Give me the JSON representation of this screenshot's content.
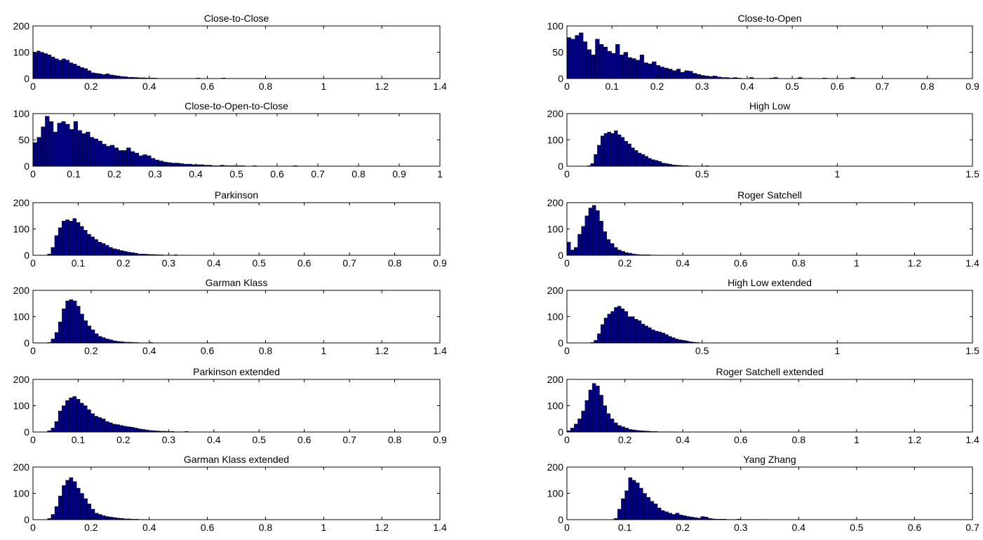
{
  "colors": {
    "bar_fill": "#000080",
    "bar_edge": "#000000",
    "axes": "#000000",
    "background": "#ffffff"
  },
  "chart_data": [
    {
      "type": "bar",
      "title": "Close-to-Close",
      "xlim": [
        0,
        1.4
      ],
      "ylim": [
        0,
        200
      ],
      "xticks": [
        "0",
        "0.2",
        "0.4",
        "0.6",
        "0.8",
        "1",
        "1.2",
        "1.4"
      ],
      "yticks": [
        "0",
        "100",
        "200"
      ],
      "bin_width": 0.0125,
      "series": [
        {
          "values": [
            98,
            105,
            100,
            95,
            90,
            82,
            75,
            70,
            75,
            70,
            60,
            55,
            48,
            42,
            38,
            30,
            22,
            20,
            18,
            15,
            18,
            14,
            12,
            10,
            8,
            7,
            5,
            5,
            4,
            3,
            3,
            2,
            2,
            2,
            1,
            0,
            0,
            0,
            0,
            0,
            0,
            0,
            0,
            0,
            0,
            2,
            0,
            0,
            0,
            0,
            0,
            0,
            2
          ]
        }
      ]
    },
    {
      "type": "bar",
      "title": "Close-to-Open",
      "xlim": [
        0,
        0.9
      ],
      "ylim": [
        0,
        100
      ],
      "xticks": [
        "0",
        "0.1",
        "0.2",
        "0.3",
        "0.4",
        "0.5",
        "0.6",
        "0.7",
        "0.8",
        "0.9"
      ],
      "yticks": [
        "0",
        "50",
        "100"
      ],
      "bin_width": 0.009,
      "series": [
        {
          "values": [
            78,
            75,
            82,
            87,
            70,
            55,
            45,
            75,
            65,
            60,
            52,
            48,
            65,
            45,
            50,
            40,
            38,
            35,
            45,
            30,
            28,
            32,
            25,
            22,
            20,
            18,
            15,
            18,
            12,
            15,
            14,
            10,
            8,
            6,
            5,
            4,
            5,
            3,
            2,
            2,
            1,
            2,
            1,
            0,
            0,
            2,
            0,
            0,
            0,
            0,
            1,
            2,
            0,
            0,
            0,
            0,
            0,
            2,
            0,
            0,
            0,
            0,
            0,
            1,
            0,
            0,
            0,
            0,
            0,
            0,
            2
          ]
        }
      ]
    },
    {
      "type": "bar",
      "title": "Close-to-Open-to-Close",
      "xlim": [
        0,
        1
      ],
      "ylim": [
        0,
        100
      ],
      "xticks": [
        "0",
        "0.1",
        "0.2",
        "0.3",
        "0.4",
        "0.5",
        "0.6",
        "0.7",
        "0.8",
        "0.9",
        "1"
      ],
      "yticks": [
        "0",
        "50",
        "100"
      ],
      "bin_width": 0.01,
      "series": [
        {
          "values": [
            45,
            55,
            75,
            95,
            85,
            65,
            82,
            85,
            80,
            70,
            85,
            68,
            62,
            65,
            55,
            52,
            48,
            42,
            38,
            40,
            35,
            30,
            30,
            35,
            28,
            25,
            20,
            22,
            20,
            15,
            12,
            10,
            8,
            7,
            6,
            6,
            5,
            4,
            4,
            3,
            3,
            3,
            2,
            2,
            1,
            1,
            2,
            1,
            1,
            1,
            1,
            1,
            0,
            0,
            1,
            0,
            0,
            0,
            0,
            0,
            0,
            0,
            0,
            0,
            1
          ]
        }
      ]
    },
    {
      "type": "bar",
      "title": "High Low",
      "xlim": [
        0,
        1.5
      ],
      "ylim": [
        0,
        200
      ],
      "xticks": [
        "0",
        "0.5",
        "1",
        "1.5"
      ],
      "yticks": [
        "0",
        "100",
        "200"
      ],
      "bin_width": 0.0125,
      "series": [
        {
          "values": [
            0,
            0,
            0,
            0,
            0,
            0,
            2,
            10,
            45,
            80,
            115,
            125,
            130,
            125,
            135,
            120,
            110,
            95,
            85,
            70,
            60,
            50,
            45,
            38,
            30,
            25,
            22,
            18,
            12,
            10,
            8,
            5,
            4,
            3,
            2,
            2,
            1,
            1,
            1,
            1,
            1,
            2
          ]
        }
      ]
    },
    {
      "type": "bar",
      "title": "Parkinson",
      "xlim": [
        0,
        0.9
      ],
      "ylim": [
        0,
        200
      ],
      "xticks": [
        "0",
        "0.1",
        "0.2",
        "0.3",
        "0.4",
        "0.5",
        "0.6",
        "0.7",
        "0.8",
        "0.9"
      ],
      "yticks": [
        "0",
        "100",
        "200"
      ],
      "bin_width": 0.008,
      "series": [
        {
          "values": [
            0,
            0,
            0,
            0,
            5,
            30,
            75,
            105,
            130,
            135,
            130,
            140,
            125,
            110,
            95,
            80,
            70,
            60,
            50,
            45,
            38,
            30,
            25,
            22,
            18,
            15,
            12,
            10,
            8,
            5,
            5,
            4,
            3,
            3,
            2,
            2,
            1,
            1,
            1,
            2,
            0,
            1
          ]
        }
      ]
    },
    {
      "type": "bar",
      "title": "Roger Satchell",
      "xlim": [
        0,
        1.4
      ],
      "ylim": [
        0,
        200
      ],
      "xticks": [
        "0",
        "0.2",
        "0.4",
        "0.6",
        "0.8",
        "1",
        "1.2",
        "1.4"
      ],
      "yticks": [
        "0",
        "100",
        "200"
      ],
      "bin_width": 0.0125,
      "series": [
        {
          "values": [
            50,
            20,
            30,
            80,
            110,
            150,
            180,
            190,
            170,
            130,
            90,
            60,
            45,
            30,
            20,
            15,
            10,
            8,
            5,
            3,
            2,
            2,
            2,
            1,
            1,
            0,
            1
          ]
        }
      ]
    },
    {
      "type": "bar",
      "title": "Garman Klass",
      "xlim": [
        0,
        1.4
      ],
      "ylim": [
        0,
        200
      ],
      "xticks": [
        "0",
        "0.2",
        "0.4",
        "0.6",
        "0.8",
        "1",
        "1.2",
        "1.4"
      ],
      "yticks": [
        "0",
        "100",
        "200"
      ],
      "bin_width": 0.0125,
      "series": [
        {
          "values": [
            0,
            0,
            0,
            0,
            2,
            15,
            40,
            80,
            130,
            160,
            165,
            160,
            140,
            110,
            85,
            65,
            50,
            35,
            25,
            20,
            15,
            12,
            8,
            6,
            5,
            3,
            3,
            2,
            2,
            1,
            1,
            1,
            2
          ]
        }
      ]
    },
    {
      "type": "bar",
      "title": "High Low extended",
      "xlim": [
        0,
        1.5
      ],
      "ylim": [
        0,
        200
      ],
      "xticks": [
        "0",
        "0.5",
        "1",
        "1.5"
      ],
      "yticks": [
        "0",
        "100",
        "200"
      ],
      "bin_width": 0.0125,
      "series": [
        {
          "values": [
            0,
            0,
            0,
            0,
            0,
            0,
            0,
            2,
            10,
            35,
            70,
            95,
            110,
            120,
            135,
            140,
            130,
            120,
            100,
            100,
            90,
            85,
            72,
            65,
            58,
            50,
            45,
            42,
            38,
            32,
            25,
            20,
            15,
            12,
            10,
            8,
            5,
            3,
            2,
            1
          ]
        }
      ]
    },
    {
      "type": "bar",
      "title": "Parkinson extended",
      "xlim": [
        0,
        0.9
      ],
      "ylim": [
        0,
        200
      ],
      "xticks": [
        "0",
        "0.1",
        "0.2",
        "0.3",
        "0.4",
        "0.5",
        "0.6",
        "0.7",
        "0.8",
        "0.9"
      ],
      "yticks": [
        "0",
        "100",
        "200"
      ],
      "bin_width": 0.008,
      "series": [
        {
          "values": [
            0,
            0,
            0,
            0,
            5,
            15,
            40,
            80,
            100,
            120,
            130,
            135,
            125,
            110,
            100,
            85,
            70,
            60,
            55,
            50,
            40,
            35,
            30,
            28,
            25,
            22,
            20,
            18,
            15,
            12,
            10,
            8,
            6,
            5,
            4,
            3,
            3,
            2,
            2,
            1,
            1,
            1,
            2
          ]
        }
      ]
    },
    {
      "type": "bar",
      "title": "Roger Satchell extended",
      "xlim": [
        0,
        1.4
      ],
      "ylim": [
        0,
        200
      ],
      "xticks": [
        "0",
        "0.2",
        "0.4",
        "0.6",
        "0.8",
        "1",
        "1.2",
        "1.4"
      ],
      "yticks": [
        "0",
        "100",
        "200"
      ],
      "bin_width": 0.0125,
      "series": [
        {
          "values": [
            5,
            15,
            30,
            50,
            80,
            120,
            160,
            185,
            175,
            140,
            100,
            70,
            50,
            35,
            25,
            20,
            15,
            10,
            8,
            6,
            5,
            4,
            3,
            2,
            2,
            1,
            1,
            1,
            1,
            1
          ]
        }
      ]
    },
    {
      "type": "bar",
      "title": "Garman Klass extended",
      "xlim": [
        0,
        1.4
      ],
      "ylim": [
        0,
        200
      ],
      "xticks": [
        "0",
        "0.2",
        "0.4",
        "0.6",
        "0.8",
        "1",
        "1.2",
        "1.4"
      ],
      "yticks": [
        "0",
        "100",
        "200"
      ],
      "bin_width": 0.0125,
      "series": [
        {
          "values": [
            0,
            0,
            0,
            0,
            5,
            20,
            50,
            90,
            130,
            150,
            160,
            145,
            120,
            100,
            80,
            60,
            40,
            25,
            20,
            15,
            12,
            10,
            8,
            6,
            5,
            3,
            3,
            2,
            2,
            1,
            1,
            1
          ]
        }
      ]
    },
    {
      "type": "bar",
      "title": "Yang Zhang",
      "xlim": [
        0,
        0.7
      ],
      "ylim": [
        0,
        200
      ],
      "xticks": [
        "0",
        "0.1",
        "0.2",
        "0.3",
        "0.4",
        "0.5",
        "0.6",
        "0.7"
      ],
      "yticks": [
        "0",
        "100",
        "200"
      ],
      "bin_width": 0.00625,
      "series": [
        {
          "values": [
            0,
            0,
            0,
            0,
            0,
            0,
            0,
            0,
            0,
            0,
            0,
            0,
            0,
            5,
            40,
            80,
            110,
            160,
            150,
            140,
            120,
            100,
            85,
            70,
            60,
            45,
            35,
            30,
            25,
            20,
            25,
            18,
            15,
            12,
            10,
            8,
            6,
            12,
            10,
            5,
            3,
            2,
            2,
            2,
            1,
            1,
            1,
            2,
            1,
            1,
            1,
            1,
            1,
            1,
            1
          ]
        }
      ]
    }
  ]
}
